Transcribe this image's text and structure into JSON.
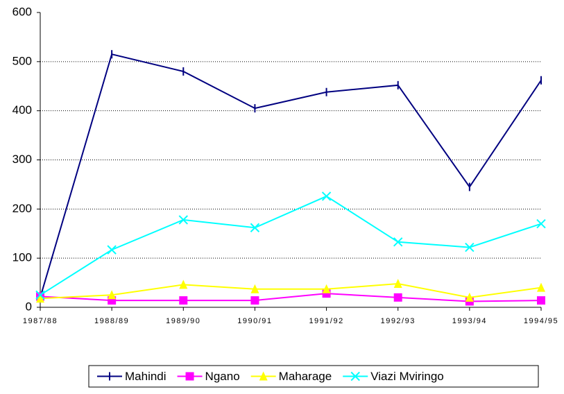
{
  "chart_data": {
    "type": "line",
    "categories": [
      "1987/88",
      "1988/89",
      "1989/90",
      "1990/91",
      "1991/92",
      "1992/93",
      "1993/94",
      "1994/95"
    ],
    "series": [
      {
        "name": "Mahindi",
        "color": "#000080",
        "marker": "plus",
        "values": [
          20,
          515,
          480,
          405,
          438,
          452,
          245,
          462
        ]
      },
      {
        "name": "Ngano",
        "color": "#ff00ff",
        "marker": "square",
        "values": [
          22,
          14,
          14,
          14,
          28,
          20,
          12,
          14
        ]
      },
      {
        "name": "Maharage",
        "color": "#ffff00",
        "marker": "triangle",
        "values": [
          18,
          25,
          46,
          37,
          37,
          48,
          20,
          40
        ]
      },
      {
        "name": "Viazi Mviringo",
        "color": "#00ffff",
        "marker": "x",
        "values": [
          25,
          117,
          178,
          162,
          226,
          133,
          122,
          170
        ]
      }
    ],
    "ylim": [
      0,
      600
    ],
    "yticks": [
      0,
      100,
      200,
      300,
      400,
      500,
      600
    ],
    "grid": true,
    "legend": "bottom"
  }
}
